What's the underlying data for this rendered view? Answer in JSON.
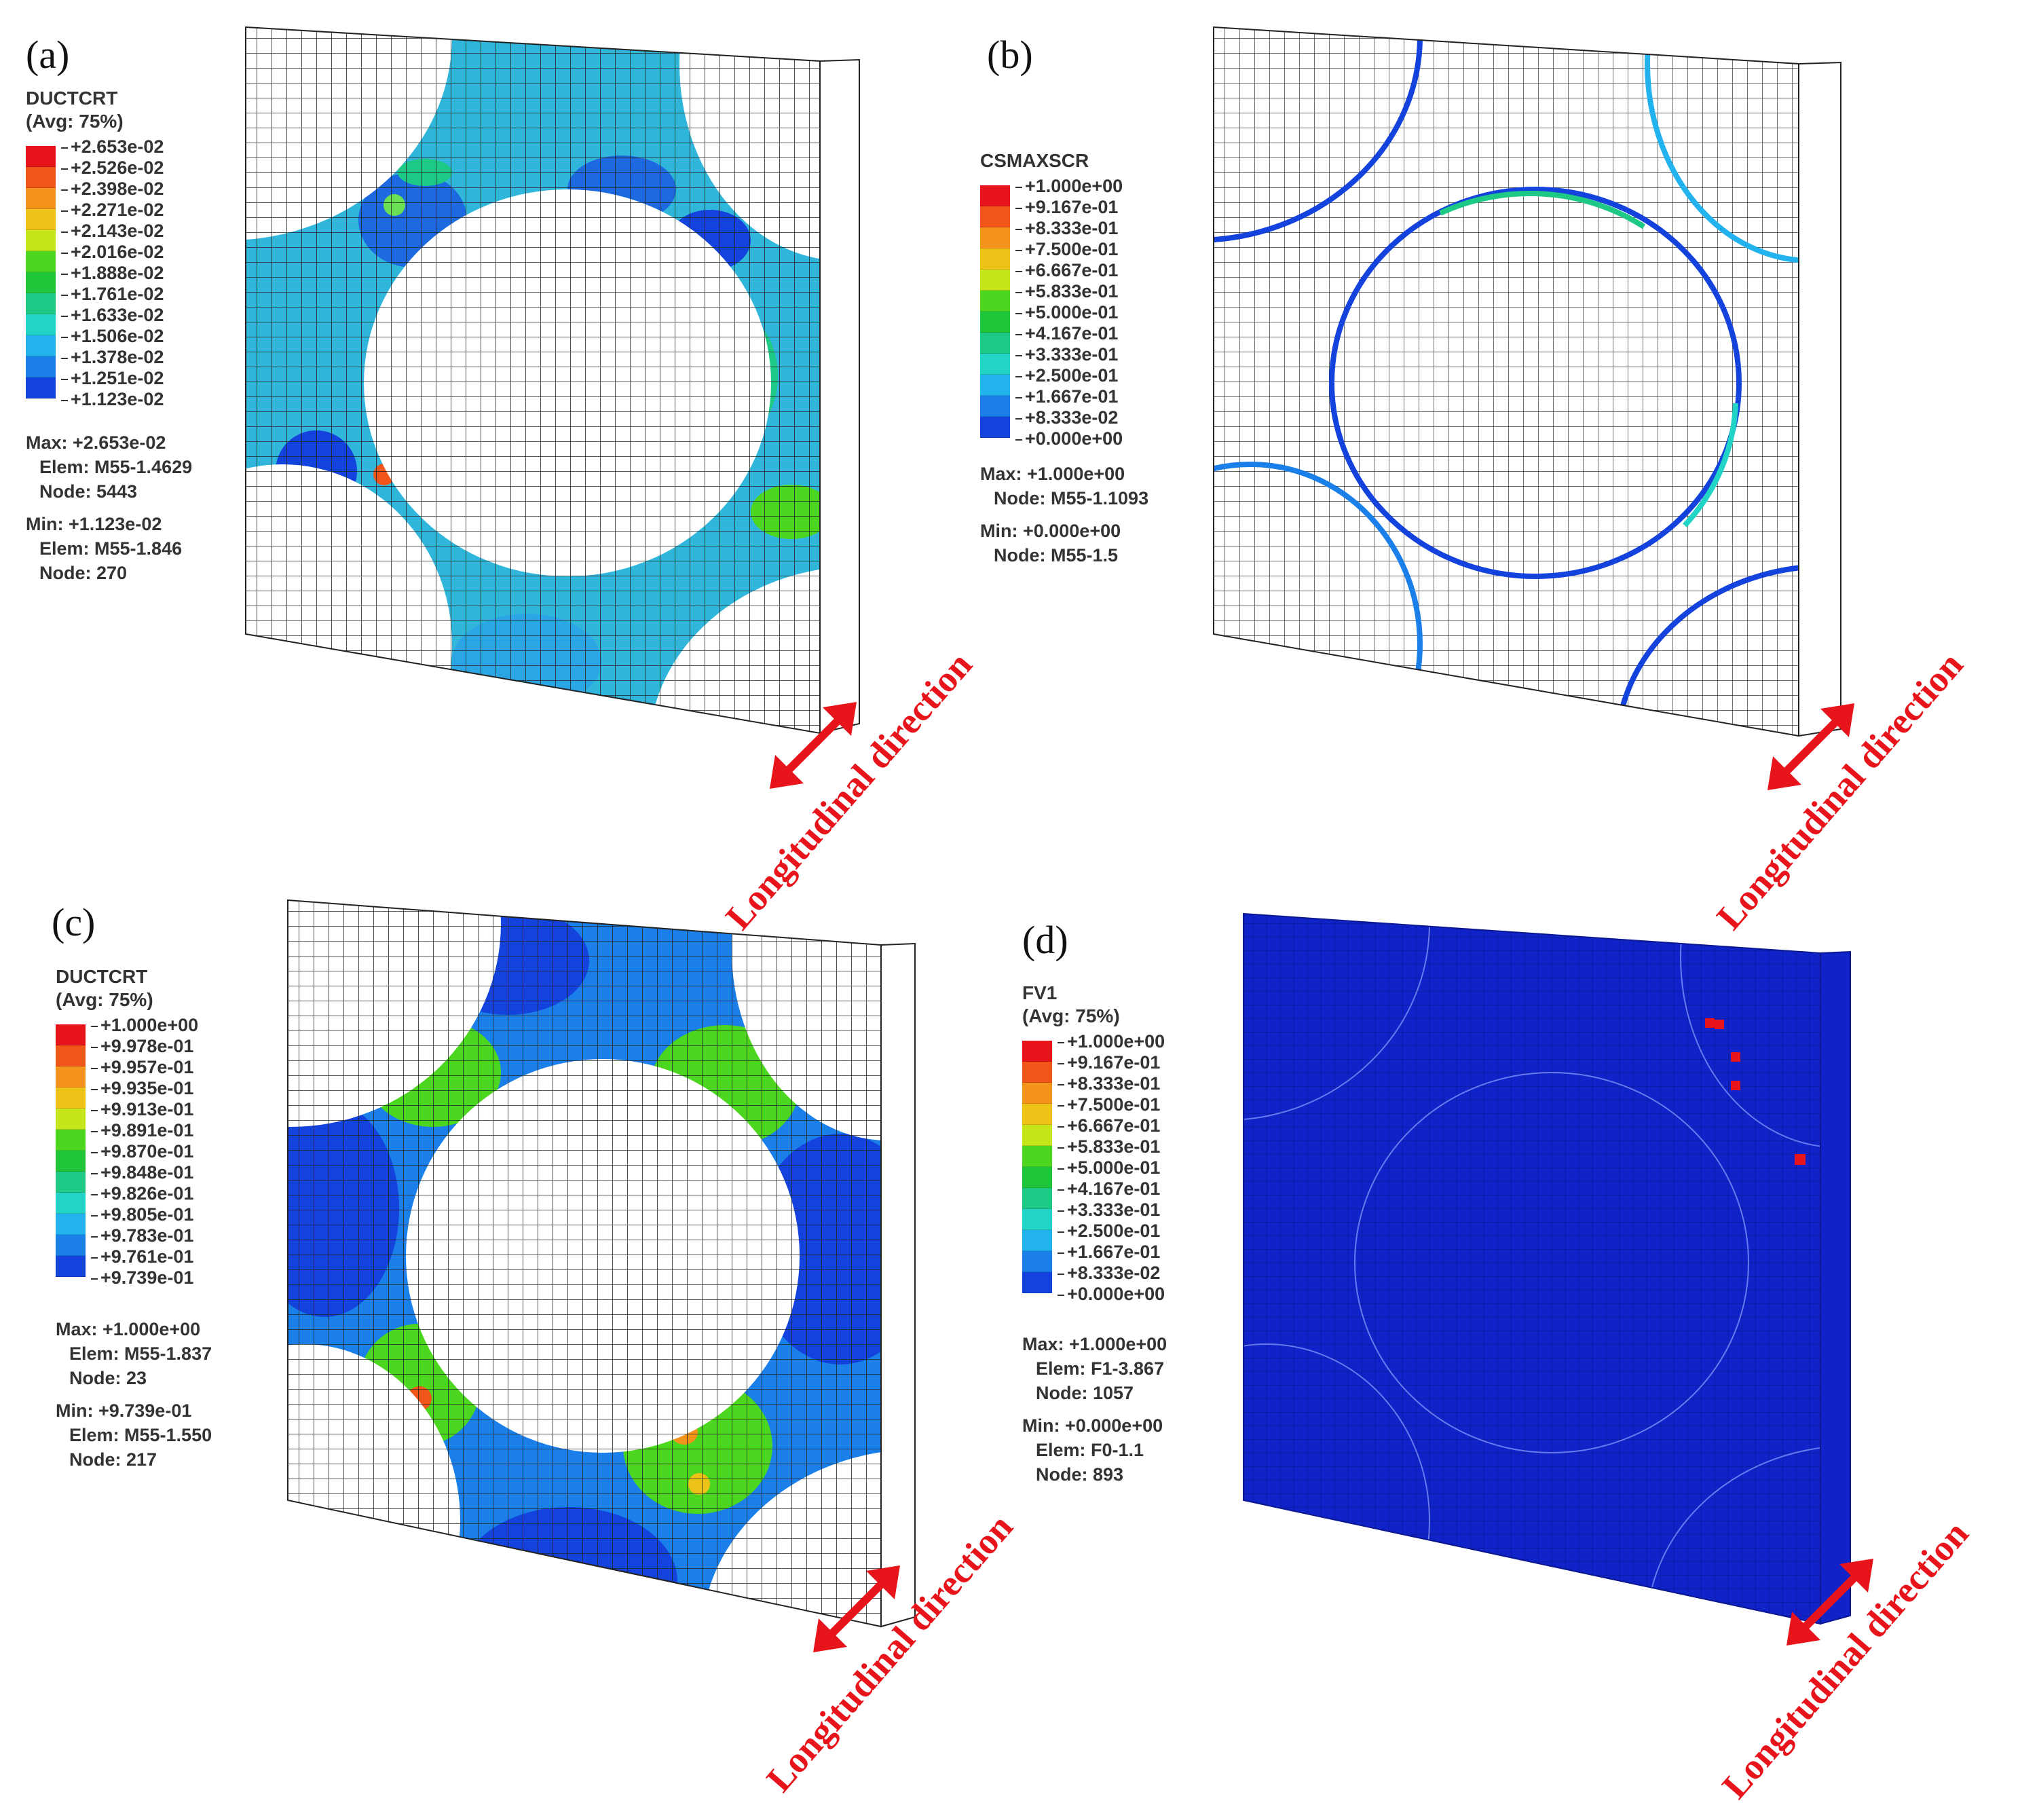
{
  "panels": [
    {
      "letter": "(a)",
      "variable": "DUCTCRT",
      "avg": "(Avg: 75%)",
      "levels": [
        "+2.653e-02",
        "+2.526e-02",
        "+2.398e-02",
        "+2.271e-02",
        "+2.143e-02",
        "+2.016e-02",
        "+1.888e-02",
        "+1.761e-02",
        "+1.633e-02",
        "+1.506e-02",
        "+1.378e-02",
        "+1.251e-02",
        "+1.123e-02"
      ],
      "max_label": "Max: +2.653e-02",
      "max_elem": "Elem: M55-1.4629",
      "max_node": "Node: 5443",
      "min_label": "Min: +1.123e-02",
      "min_elem": "Elem: M55-1.846",
      "min_node": "Node: 270",
      "direction": "Longitudinal direction"
    },
    {
      "letter": "(b)",
      "variable": "CSMAXSCR",
      "avg": "",
      "levels": [
        "+1.000e+00",
        "+9.167e-01",
        "+8.333e-01",
        "+7.500e-01",
        "+6.667e-01",
        "+5.833e-01",
        "+5.000e-01",
        "+4.167e-01",
        "+3.333e-01",
        "+2.500e-01",
        "+1.667e-01",
        "+8.333e-02",
        "+0.000e+00"
      ],
      "max_label": "Max: +1.000e+00",
      "max_node": "Node: M55-1.1093",
      "min_label": "Min: +0.000e+00",
      "min_node": "Node: M55-1.5",
      "direction": "Longitudinal direction"
    },
    {
      "letter": "(c)",
      "variable": "DUCTCRT",
      "avg": "(Avg: 75%)",
      "levels": [
        "+1.000e+00",
        "+9.978e-01",
        "+9.957e-01",
        "+9.935e-01",
        "+9.913e-01",
        "+9.891e-01",
        "+9.870e-01",
        "+9.848e-01",
        "+9.826e-01",
        "+9.805e-01",
        "+9.783e-01",
        "+9.761e-01",
        "+9.739e-01"
      ],
      "max_label": "Max: +1.000e+00",
      "max_elem": "Elem: M55-1.837",
      "max_node": "Node: 23",
      "min_label": "Min: +9.739e-01",
      "min_elem": "Elem: M55-1.550",
      "min_node": "Node: 217",
      "direction": "Longitudinal direction"
    },
    {
      "letter": "(d)",
      "variable": "FV1",
      "avg": "(Avg: 75%)",
      "levels": [
        "+1.000e+00",
        "+9.167e-01",
        "+8.333e-01",
        "+7.500e-01",
        "+6.667e-01",
        "+5.833e-01",
        "+5.000e-01",
        "+4.167e-01",
        "+3.333e-01",
        "+2.500e-01",
        "+1.667e-01",
        "+8.333e-02",
        "+0.000e+00"
      ],
      "max_label": "Max: +1.000e+00",
      "max_elem": "Elem: F1-3.867",
      "max_node": "Node: 1057",
      "min_label": "Min: +0.000e+00",
      "min_elem": "Elem: F0-1.1",
      "min_node": "Node: 893",
      "direction": "Longitudinal direction"
    }
  ],
  "colors": {
    "scale": [
      "#e8141b",
      "#f0561a",
      "#f4941c",
      "#eec317",
      "#c6e51a",
      "#4cd61f",
      "#1fc63a",
      "#1ec985",
      "#22d4c6",
      "#22b2ee",
      "#1a7fe8",
      "#1442dc",
      "#0e1bd0"
    ],
    "arrow": "#e8141b",
    "mesh_line": "#222222",
    "deep_blue": "#0f23c8"
  }
}
